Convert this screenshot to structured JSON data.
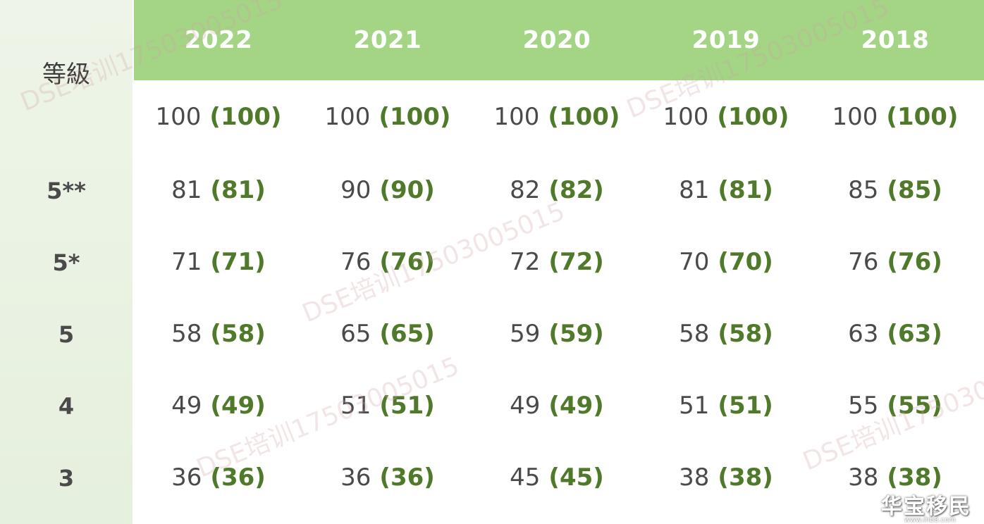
{
  "table": {
    "corner_label": "等級",
    "years": [
      "2022",
      "2021",
      "2020",
      "2019",
      "2018"
    ],
    "rows": [
      {
        "grade": "",
        "cells": [
          {
            "value": "100",
            "paren": "(100)"
          },
          {
            "value": "100",
            "paren": "(100)"
          },
          {
            "value": "100",
            "paren": "(100)"
          },
          {
            "value": "100",
            "paren": "(100)"
          },
          {
            "value": "100",
            "paren": "(100)"
          }
        ]
      },
      {
        "grade": "5**",
        "cells": [
          {
            "value": "81",
            "paren": "(81)"
          },
          {
            "value": "90",
            "paren": "(90)"
          },
          {
            "value": "82",
            "paren": "(82)"
          },
          {
            "value": "81",
            "paren": "(81)"
          },
          {
            "value": "85",
            "paren": "(85)"
          }
        ]
      },
      {
        "grade": "5*",
        "cells": [
          {
            "value": "71",
            "paren": "(71)"
          },
          {
            "value": "76",
            "paren": "(76)"
          },
          {
            "value": "72",
            "paren": "(72)"
          },
          {
            "value": "70",
            "paren": "(70)"
          },
          {
            "value": "76",
            "paren": "(76)"
          }
        ]
      },
      {
        "grade": "5",
        "cells": [
          {
            "value": "58",
            "paren": "(58)"
          },
          {
            "value": "65",
            "paren": "(65)"
          },
          {
            "value": "59",
            "paren": "(59)"
          },
          {
            "value": "58",
            "paren": "(58)"
          },
          {
            "value": "63",
            "paren": "(63)"
          }
        ]
      },
      {
        "grade": "4",
        "cells": [
          {
            "value": "49",
            "paren": "(49)"
          },
          {
            "value": "51",
            "paren": "(51)"
          },
          {
            "value": "49",
            "paren": "(49)"
          },
          {
            "value": "51",
            "paren": "(51)"
          },
          {
            "value": "55",
            "paren": "(55)"
          }
        ]
      },
      {
        "grade": "3",
        "cells": [
          {
            "value": "36",
            "paren": "(36)"
          },
          {
            "value": "36",
            "paren": "(36)"
          },
          {
            "value": "45",
            "paren": "(45)"
          },
          {
            "value": "38",
            "paren": "(38)"
          },
          {
            "value": "38",
            "paren": "(38)"
          }
        ]
      }
    ]
  },
  "watermarks": [
    "DSE培训17503005015",
    "DSE培训17503005015",
    "DSE培训17503005015",
    "DSE培训17503005015",
    "DSE培训17503005015"
  ],
  "logo": {
    "text": "华宝移民",
    "url": "www.ihb8.com"
  },
  "colors": {
    "header_bg": "#a3d585",
    "sidebar_bg": "#e6f0de",
    "value_text": "#4a4a4a",
    "paren_text": "#4f7a2a"
  }
}
